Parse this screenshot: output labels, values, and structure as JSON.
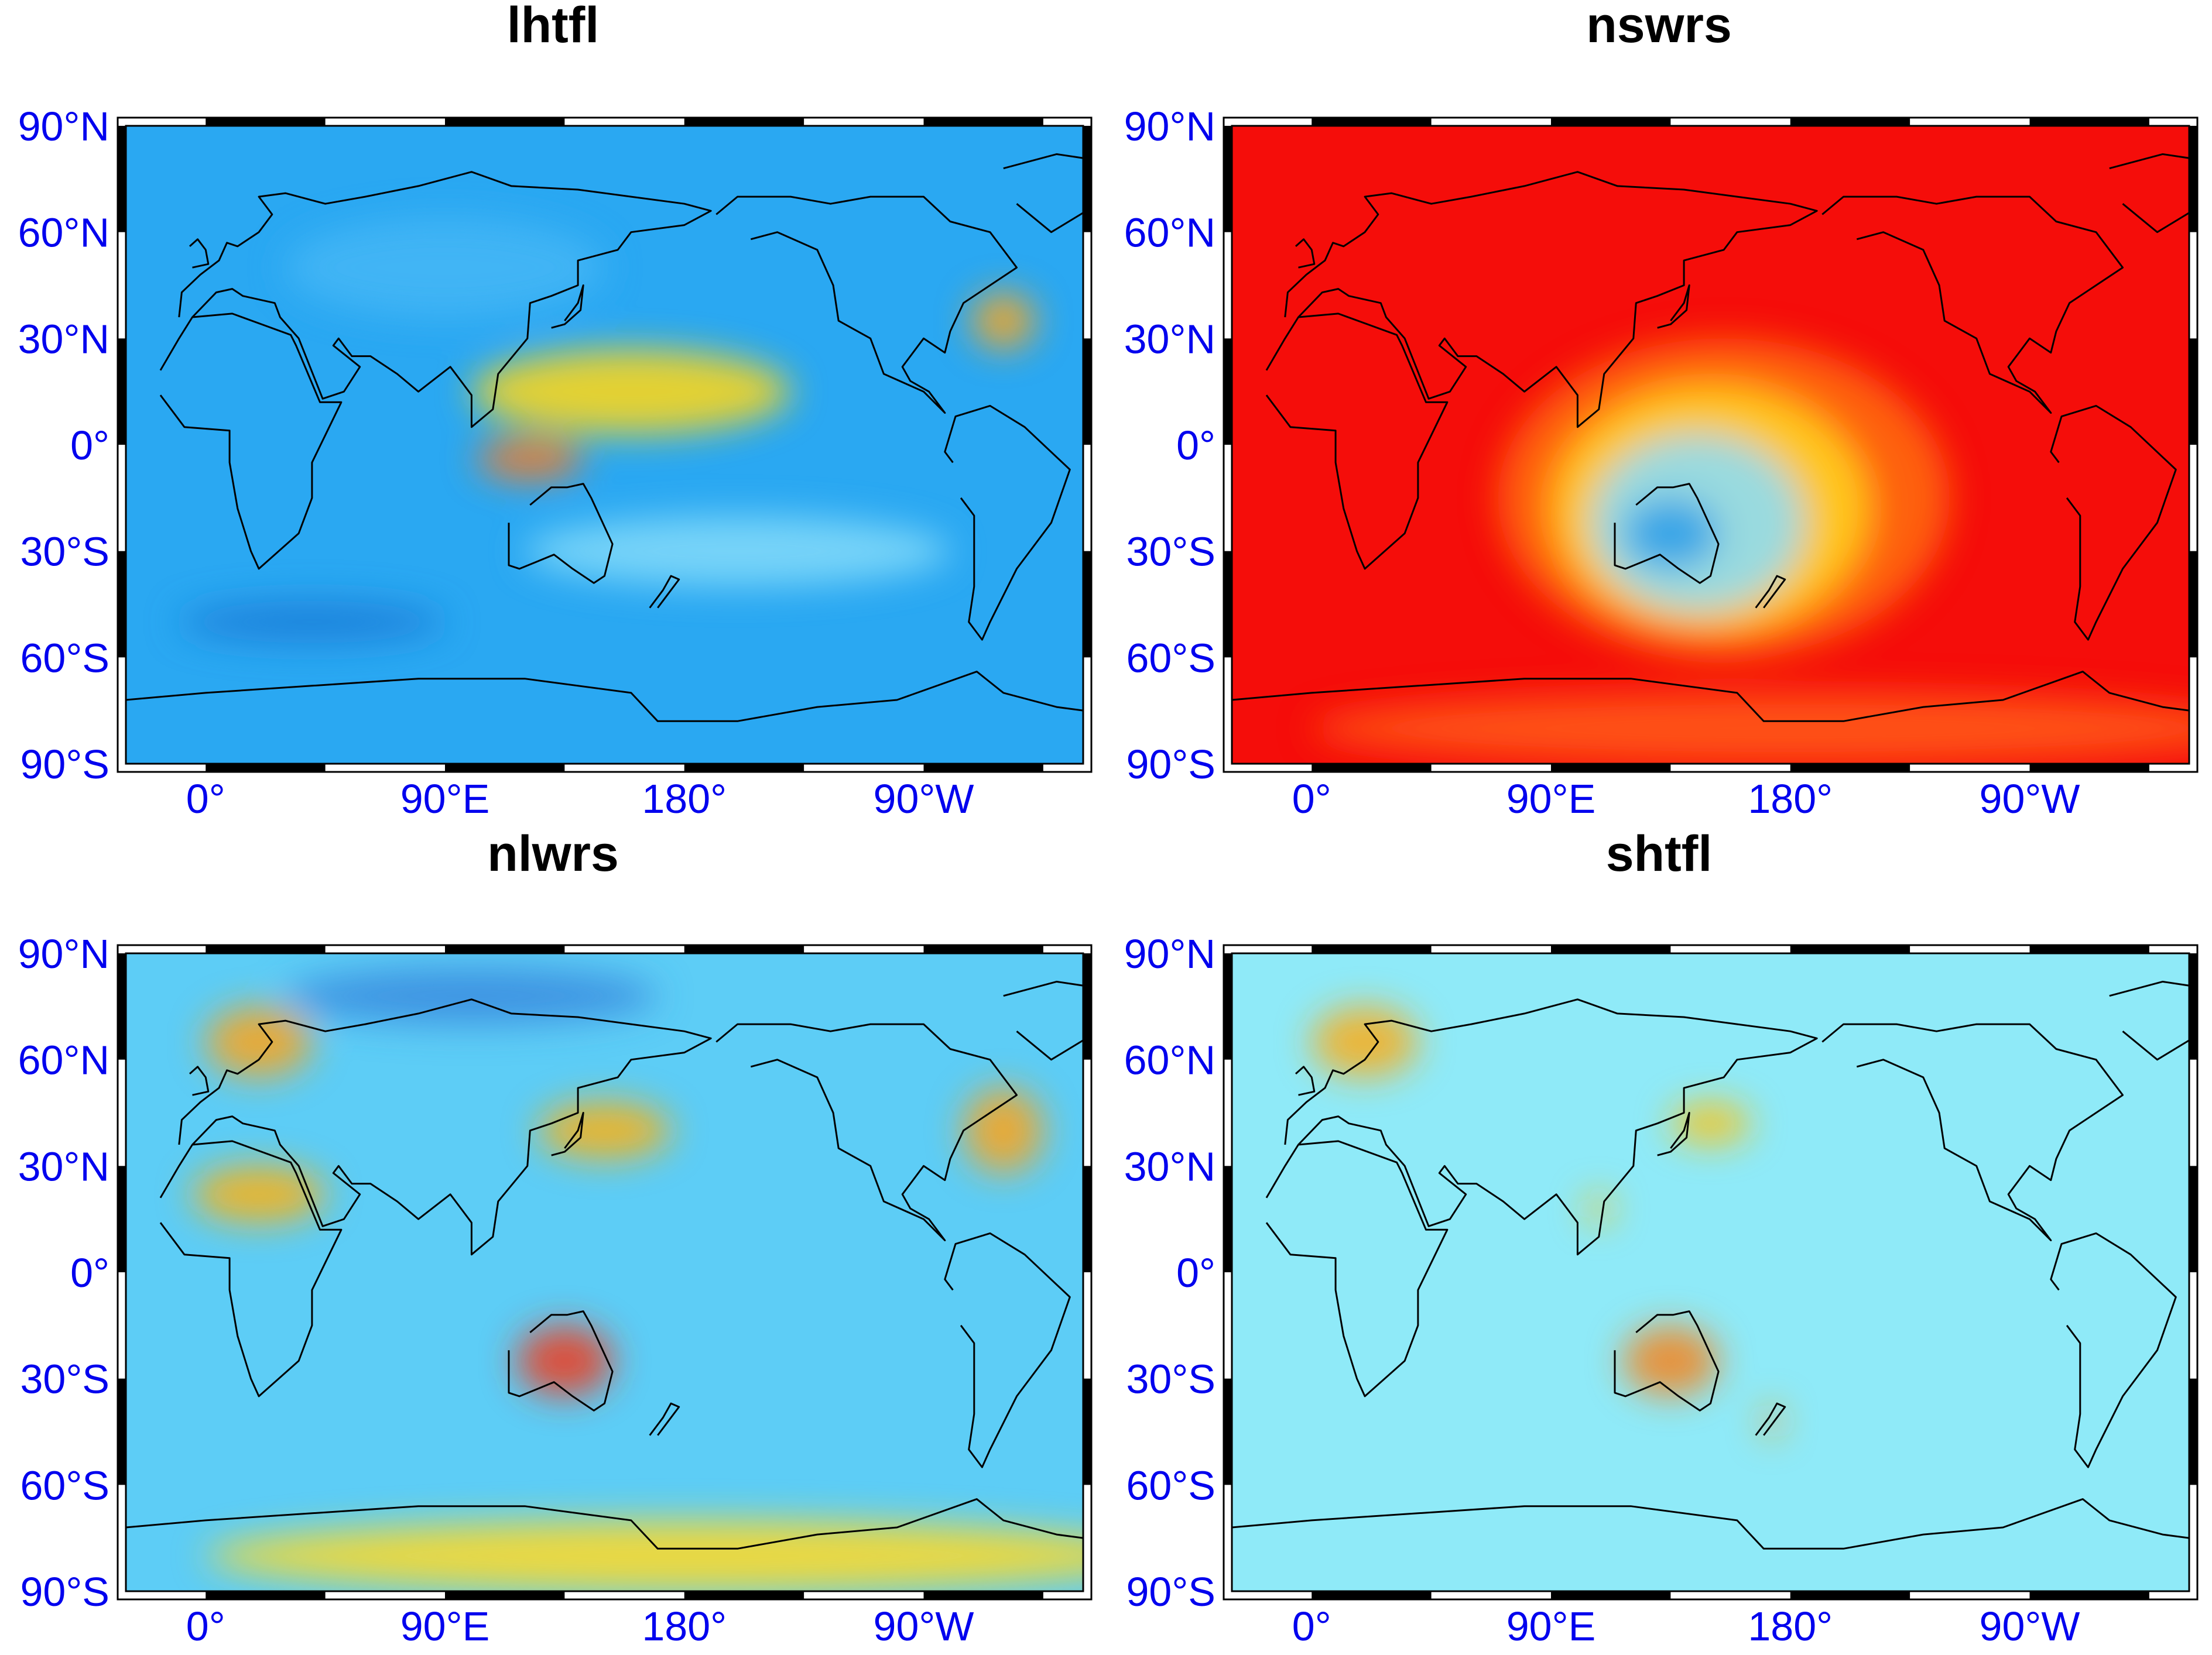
{
  "panels": [
    {
      "id": "lhtfl",
      "title": "lhtfl",
      "base_color": "#2aa8f2",
      "coast_color": "#000000",
      "blobs": [
        {
          "lon": 160,
          "lat": 15,
          "rx": 60,
          "ry": 12,
          "color": "#f7d51e"
        },
        {
          "lon": 300,
          "lat": 35,
          "rx": 12,
          "ry": 8,
          "color": "#f5a623"
        },
        {
          "lon": 122,
          "lat": -4,
          "rx": 20,
          "ry": 6,
          "color": "#f07b2a"
        },
        {
          "lon": 90,
          "lat": 50,
          "rx": 60,
          "ry": 14,
          "color": "#42b6f5"
        },
        {
          "lon": 200,
          "lat": -30,
          "rx": 80,
          "ry": 10,
          "color": "#7fd8f8"
        },
        {
          "lon": 40,
          "lat": -50,
          "rx": 50,
          "ry": 6,
          "color": "#1f7fd9"
        }
      ]
    },
    {
      "id": "nswrs",
      "title": "nswrs",
      "base_color": "#f50d0a",
      "coast_color": "#000000",
      "blobs": [
        {
          "lon": 155,
          "lat": -15,
          "rx": 85,
          "ry": 45,
          "color": "#ff6a12"
        },
        {
          "lon": 150,
          "lat": -18,
          "rx": 60,
          "ry": 35,
          "color": "#ffd21f"
        },
        {
          "lon": 145,
          "lat": -22,
          "rx": 40,
          "ry": 25,
          "color": "#8edcf5"
        },
        {
          "lon": 135,
          "lat": -25,
          "rx": 18,
          "ry": 10,
          "color": "#2f9ee8"
        },
        {
          "lon": 180,
          "lat": -80,
          "rx": 180,
          "ry": 10,
          "color": "#ff5a14"
        }
      ]
    },
    {
      "id": "nlwrs",
      "title": "nlwrs",
      "base_color": "#5dcdf6",
      "coast_color": "#000000",
      "blobs": [
        {
          "lon": 135,
          "lat": -25,
          "rx": 18,
          "ry": 10,
          "color": "#e8442a"
        },
        {
          "lon": 20,
          "lat": 22,
          "rx": 25,
          "ry": 8,
          "color": "#f7b318"
        },
        {
          "lon": 180,
          "lat": -80,
          "rx": 180,
          "ry": 10,
          "color": "#f9d92b"
        },
        {
          "lon": 300,
          "lat": 40,
          "rx": 15,
          "ry": 12,
          "color": "#f5a623"
        },
        {
          "lon": 150,
          "lat": 40,
          "rx": 25,
          "ry": 8,
          "color": "#f7b318"
        },
        {
          "lon": 100,
          "lat": 78,
          "rx": 70,
          "ry": 8,
          "color": "#3a8ee0"
        },
        {
          "lon": 20,
          "lat": 65,
          "rx": 20,
          "ry": 10,
          "color": "#f5a623"
        }
      ]
    },
    {
      "id": "shtfl",
      "title": "shtfl",
      "base_color": "#8feaf8",
      "coast_color": "#000000",
      "blobs": [
        {
          "lon": 135,
          "lat": -25,
          "rx": 18,
          "ry": 10,
          "color": "#f08a28"
        },
        {
          "lon": 150,
          "lat": 42,
          "rx": 15,
          "ry": 6,
          "color": "#f7c51e"
        },
        {
          "lon": 20,
          "lat": 65,
          "rx": 20,
          "ry": 10,
          "color": "#f5b023"
        },
        {
          "lon": 108,
          "lat": 18,
          "rx": 5,
          "ry": 4,
          "color": "#f7c51e"
        },
        {
          "lon": 173,
          "lat": -42,
          "rx": 3,
          "ry": 5,
          "color": "#f5a623"
        }
      ]
    }
  ],
  "axes": {
    "lat_ticks": [
      {
        "value": 90,
        "label": "90°N"
      },
      {
        "value": 60,
        "label": "60°N"
      },
      {
        "value": 30,
        "label": "30°N"
      },
      {
        "value": 0,
        "label": "0°"
      },
      {
        "value": -30,
        "label": "30°S"
      },
      {
        "value": -60,
        "label": "60°S"
      },
      {
        "value": -90,
        "label": "90°S"
      }
    ],
    "lon_ticks": [
      {
        "value": 0,
        "label": "0°"
      },
      {
        "value": 90,
        "label": "90°E"
      },
      {
        "value": 180,
        "label": "180°"
      },
      {
        "value": 270,
        "label": "90°W"
      }
    ],
    "lon_range": [
      -30,
      330
    ],
    "lat_range": [
      -90,
      90
    ]
  }
}
